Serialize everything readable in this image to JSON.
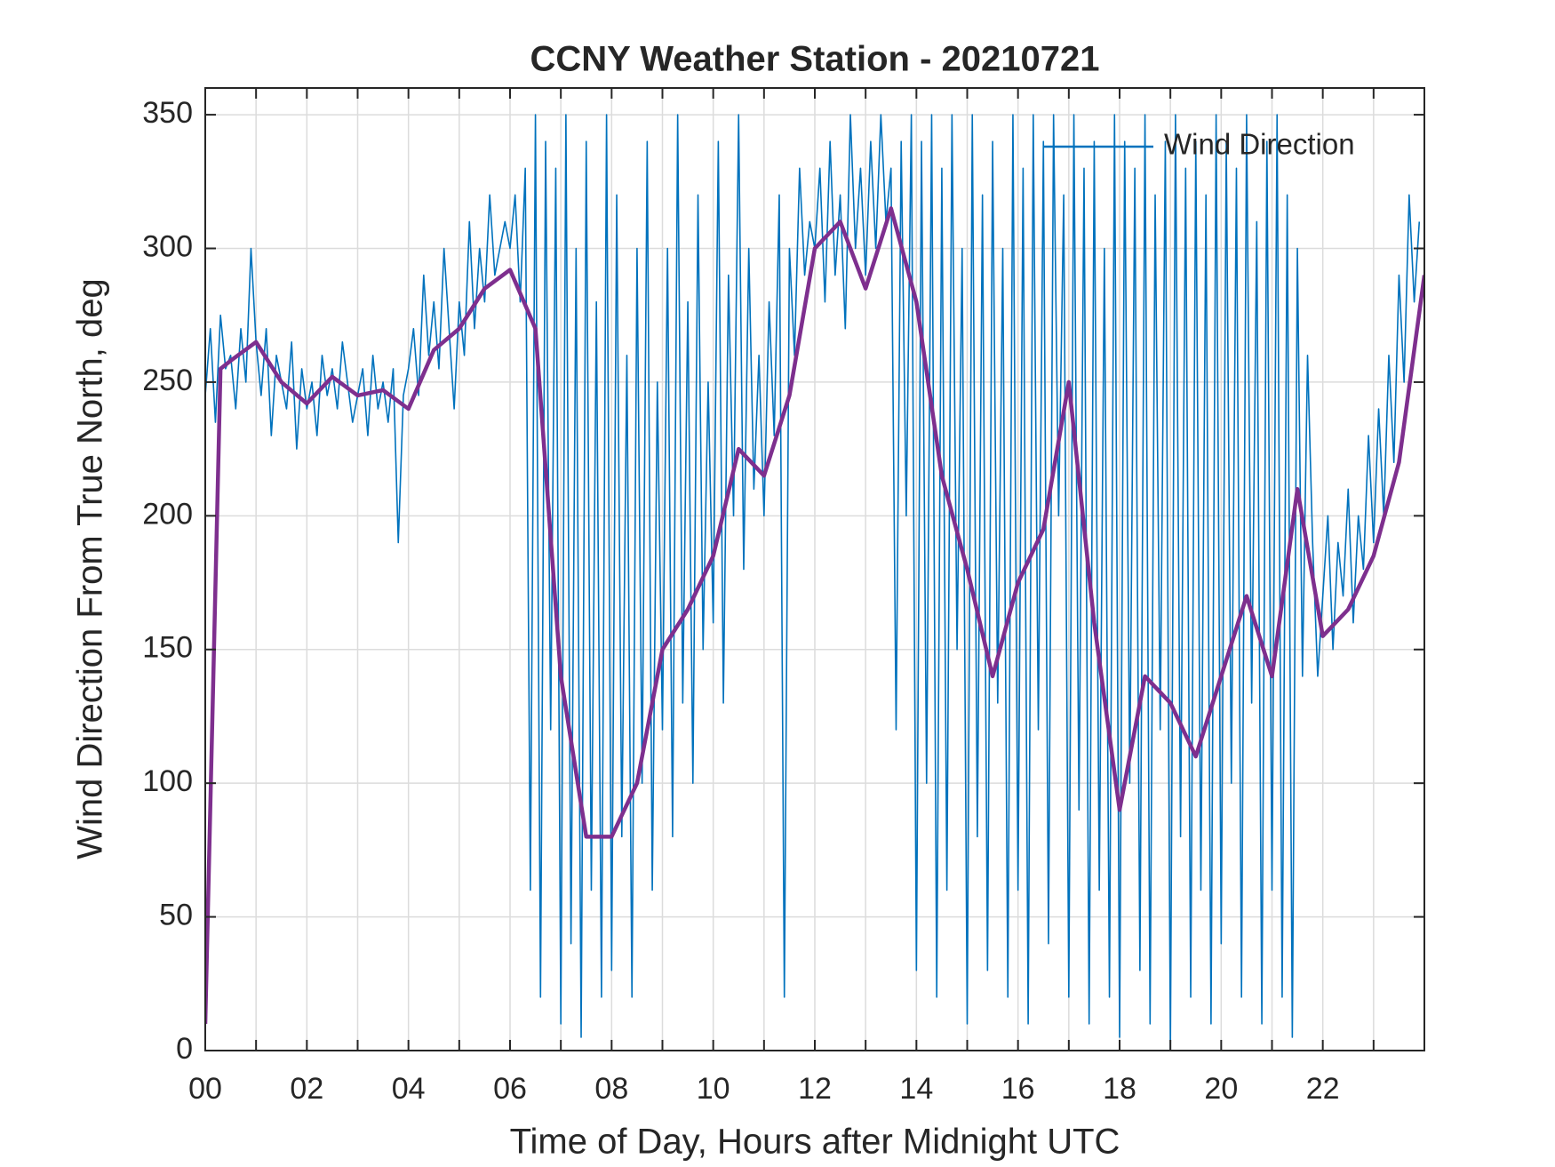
{
  "chart_data": {
    "type": "line",
    "title": "CCNY Weather Station - 20210721",
    "x_label": "Time of Day, Hours after Midnight UTC",
    "y_label": "Wind Direction From True North, deg",
    "xlim": [
      0,
      24
    ],
    "ylim": [
      0,
      360
    ],
    "xticks": [
      {
        "value": 0,
        "label": "00"
      },
      {
        "value": 2,
        "label": "02"
      },
      {
        "value": 4,
        "label": "04"
      },
      {
        "value": 6,
        "label": "06"
      },
      {
        "value": 8,
        "label": "08"
      },
      10,
      12,
      14,
      16,
      18,
      20,
      22
    ],
    "xminor_ticks": [
      1,
      3,
      5,
      7,
      9,
      11,
      13,
      15,
      17,
      19,
      21,
      23
    ],
    "yticks": [
      0,
      50,
      100,
      150,
      200,
      250,
      300,
      350
    ],
    "grid": true,
    "legend": "upper right",
    "series": [
      {
        "name": "Wind Direction",
        "color": "#0072bd",
        "width": 1.6,
        "x": [
          0,
          0.1,
          0.2,
          0.3,
          0.4,
          0.5,
          0.6,
          0.7,
          0.8,
          0.9,
          1,
          1.1,
          1.2,
          1.3,
          1.4,
          1.5,
          1.6,
          1.7,
          1.8,
          1.9,
          2,
          2.1,
          2.2,
          2.3,
          2.4,
          2.5,
          2.6,
          2.7,
          2.8,
          2.9,
          3,
          3.1,
          3.2,
          3.3,
          3.4,
          3.5,
          3.6,
          3.7,
          3.8,
          3.9,
          4,
          4.1,
          4.2,
          4.3,
          4.4,
          4.5,
          4.6,
          4.7,
          4.8,
          4.9,
          5,
          5.1,
          5.2,
          5.3,
          5.4,
          5.5,
          5.6,
          5.7,
          5.8,
          5.9,
          6,
          6.1,
          6.2,
          6.3,
          6.4,
          6.5,
          6.6,
          6.7,
          6.8,
          6.9,
          7,
          7.1,
          7.2,
          7.3,
          7.4,
          7.5,
          7.6,
          7.7,
          7.8,
          7.9,
          8,
          8.1,
          8.2,
          8.3,
          8.4,
          8.5,
          8.6,
          8.7,
          8.8,
          8.9,
          9,
          9.1,
          9.2,
          9.3,
          9.4,
          9.5,
          9.6,
          9.7,
          9.8,
          9.9,
          10,
          10.1,
          10.2,
          10.3,
          10.4,
          10.5,
          10.6,
          10.7,
          10.8,
          10.9,
          11,
          11.1,
          11.2,
          11.3,
          11.4,
          11.5,
          11.6,
          11.7,
          11.8,
          11.9,
          12,
          12.1,
          12.2,
          12.3,
          12.4,
          12.5,
          12.6,
          12.7,
          12.8,
          12.9,
          13,
          13.1,
          13.2,
          13.3,
          13.4,
          13.5,
          13.6,
          13.7,
          13.8,
          13.9,
          14,
          14.1,
          14.2,
          14.3,
          14.4,
          14.5,
          14.6,
          14.7,
          14.8,
          14.9,
          15,
          15.1,
          15.2,
          15.3,
          15.4,
          15.5,
          15.6,
          15.7,
          15.8,
          15.9,
          16,
          16.1,
          16.2,
          16.3,
          16.4,
          16.5,
          16.6,
          16.7,
          16.8,
          16.9,
          17,
          17.1,
          17.2,
          17.3,
          17.4,
          17.5,
          17.6,
          17.7,
          17.8,
          17.9,
          18,
          18.1,
          18.2,
          18.3,
          18.4,
          18.5,
          18.6,
          18.7,
          18.8,
          18.9,
          19,
          19.1,
          19.2,
          19.3,
          19.4,
          19.5,
          19.6,
          19.7,
          19.8,
          19.9,
          20,
          20.1,
          20.2,
          20.3,
          20.4,
          20.5,
          20.6,
          20.7,
          20.8,
          20.9,
          21,
          21.1,
          21.2,
          21.3,
          21.4,
          21.5,
          21.6,
          21.7,
          21.8,
          21.9,
          22,
          22.1,
          22.2,
          22.3,
          22.4,
          22.5,
          22.6,
          22.7,
          22.8,
          22.9,
          23,
          23.1,
          23.2,
          23.3,
          23.4,
          23.5,
          23.6,
          23.7,
          23.8,
          23.9
        ],
        "values": [
          245,
          270,
          235,
          275,
          255,
          260,
          240,
          270,
          250,
          300,
          265,
          245,
          270,
          230,
          260,
          250,
          240,
          265,
          225,
          255,
          240,
          250,
          230,
          260,
          245,
          255,
          240,
          265,
          250,
          235,
          245,
          255,
          230,
          260,
          240,
          250,
          235,
          255,
          190,
          245,
          255,
          270,
          245,
          290,
          260,
          280,
          255,
          300,
          270,
          240,
          280,
          260,
          310,
          270,
          300,
          280,
          320,
          290,
          300,
          310,
          300,
          320,
          280,
          330,
          60,
          350,
          20,
          340,
          120,
          330,
          10,
          350,
          40,
          300,
          5,
          340,
          60,
          280,
          20,
          350,
          30,
          320,
          80,
          260,
          20,
          300,
          100,
          340,
          60,
          250,
          120,
          300,
          80,
          350,
          130,
          280,
          100,
          320,
          150,
          250,
          160,
          340,
          130,
          290,
          200,
          350,
          180,
          300,
          210,
          260,
          200,
          280,
          230,
          320,
          20,
          300,
          260,
          330,
          290,
          310,
          300,
          330,
          280,
          340,
          290,
          320,
          270,
          350,
          300,
          330,
          290,
          340,
          300,
          350,
          310,
          330,
          120,
          340,
          200,
          350,
          30,
          340,
          100,
          350,
          20,
          330,
          60,
          350,
          150,
          300,
          10,
          350,
          80,
          320,
          30,
          340,
          130,
          300,
          20,
          350,
          60,
          330,
          10,
          350,
          120,
          340,
          40,
          350,
          200,
          320,
          20,
          350,
          90,
          330,
          10,
          340,
          60,
          300,
          20,
          350,
          5,
          340,
          100,
          330,
          30,
          350,
          10,
          320,
          120,
          340,
          0,
          350,
          80,
          330,
          20,
          340,
          60,
          320,
          10,
          350,
          40,
          340,
          100,
          330,
          20,
          350,
          130,
          310,
          10,
          340,
          60,
          350,
          20,
          320,
          5,
          300,
          140,
          260,
          190,
          140,
          170,
          200,
          150,
          190,
          170,
          210,
          160,
          200,
          180,
          230,
          190,
          240,
          200,
          260,
          220,
          290,
          250,
          320,
          280,
          310
        ]
      },
      {
        "color": "#7e2f8e",
        "width": 4.5,
        "x": [
          0,
          0.3,
          0.5,
          1,
          1.5,
          2,
          2.5,
          3,
          3.5,
          4,
          4.5,
          5,
          5.5,
          6,
          6.5,
          7,
          7.5,
          8,
          8.5,
          9,
          9.5,
          10,
          10.5,
          11,
          11.5,
          12,
          12.5,
          13,
          13.5,
          14,
          14.5,
          15,
          15.5,
          16,
          16.5,
          17,
          17.5,
          18,
          18.5,
          19,
          19.5,
          20,
          20.5,
          21,
          21.5,
          22,
          22.5,
          23,
          23.5,
          24
        ],
        "values": [
          10,
          255,
          258,
          265,
          250,
          242,
          252,
          245,
          247,
          240,
          262,
          270,
          285,
          292,
          270,
          140,
          80,
          80,
          100,
          150,
          165,
          185,
          225,
          215,
          245,
          300,
          310,
          285,
          315,
          280,
          215,
          180,
          140,
          175,
          195,
          250,
          160,
          90,
          140,
          130,
          110,
          140,
          170,
          140,
          210,
          155,
          165,
          185,
          220,
          290
        ]
      }
    ]
  }
}
